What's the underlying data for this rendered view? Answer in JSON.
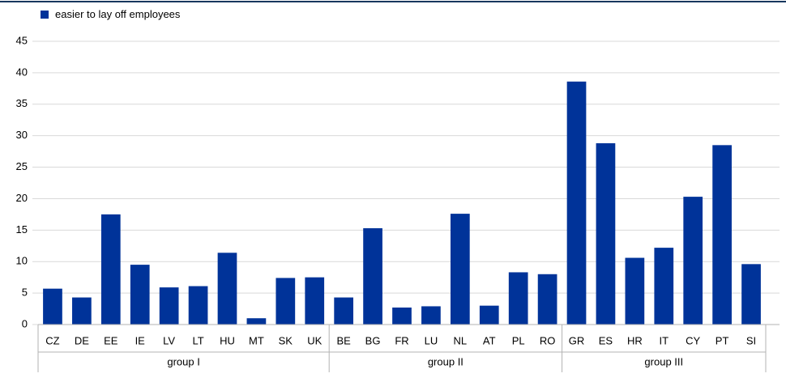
{
  "chart_data": {
    "type": "bar",
    "series_name": "easier to lay off employees",
    "color": "#003399",
    "ylim": [
      0,
      45
    ],
    "yticks": [
      0,
      5,
      10,
      15,
      20,
      25,
      30,
      35,
      40,
      45
    ],
    "grid": true,
    "groups": [
      {
        "label": "group I",
        "categories": [
          "CZ",
          "DE",
          "EE",
          "IE",
          "LV",
          "LT",
          "HU",
          "MT",
          "SK",
          "UK"
        ],
        "values": [
          5.7,
          4.3,
          17.5,
          9.5,
          5.9,
          6.1,
          11.4,
          1.0,
          7.4,
          7.5
        ]
      },
      {
        "label": "group II",
        "categories": [
          "BE",
          "BG",
          "FR",
          "LU",
          "NL",
          "AT",
          "PL",
          "RO"
        ],
        "values": [
          4.3,
          15.3,
          2.7,
          2.9,
          17.6,
          3.0,
          8.3,
          8.0
        ]
      },
      {
        "label": "group III",
        "categories": [
          "GR",
          "ES",
          "HR",
          "IT",
          "CY",
          "PT",
          "SI"
        ],
        "values": [
          38.6,
          28.8,
          10.6,
          12.2,
          20.3,
          28.5,
          9.6
        ]
      }
    ]
  }
}
